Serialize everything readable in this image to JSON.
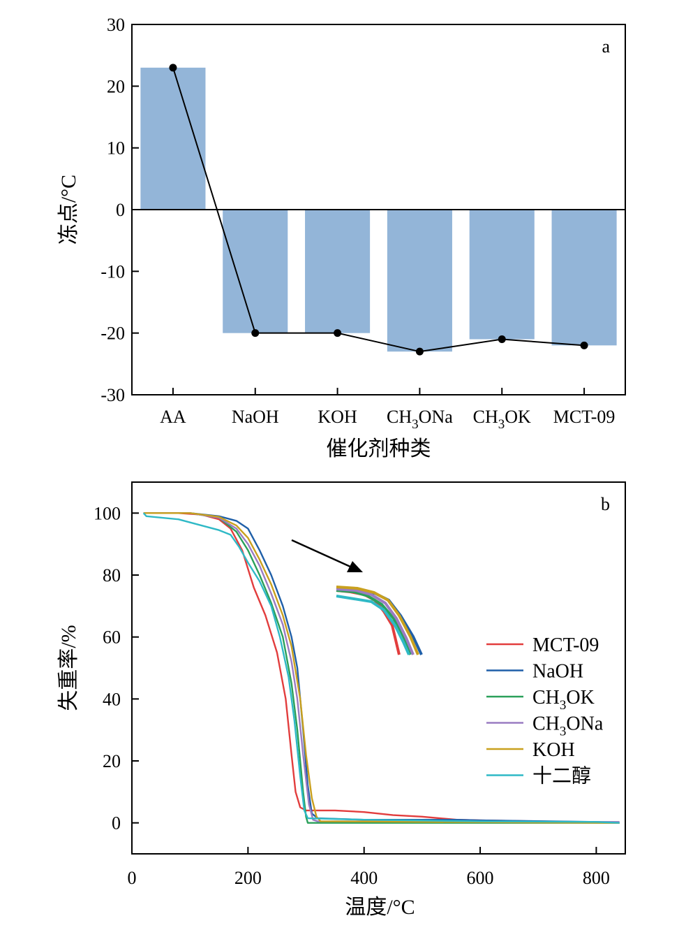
{
  "chart_data": [
    {
      "panel": "a",
      "type": "bar",
      "categories": [
        "AA",
        "NaOH",
        "KOH",
        "CH3ONa",
        "CH3OK",
        "MCT-09"
      ],
      "values": [
        23,
        -20,
        -20,
        -23,
        -21,
        -22
      ],
      "ylabel": "冻点/°C",
      "xlabel": "催化剂种类",
      "ylim": [
        -30,
        30
      ],
      "yticks": [
        "30",
        "20",
        "10",
        "0",
        "-10",
        "-20",
        "-30"
      ],
      "overlay": "line",
      "bar_color": "#93b5d8",
      "grid": false
    },
    {
      "panel": "b",
      "type": "line",
      "xlabel": "温度/°C",
      "ylabel": "失重率/%",
      "xlim": [
        0,
        850
      ],
      "ylim": [
        -10,
        110
      ],
      "xticks": [
        "0",
        "200",
        "400",
        "600",
        "800"
      ],
      "yticks": [
        "100",
        "80",
        "60",
        "40",
        "20",
        "0"
      ],
      "legend_position": "right",
      "grid": false,
      "series": [
        {
          "name": "MCT-09",
          "color": "#e23d3d",
          "points": [
            [
              20,
              100
            ],
            [
              80,
              100
            ],
            [
              120,
              99.5
            ],
            [
              150,
              98
            ],
            [
              170,
              95
            ],
            [
              190,
              88
            ],
            [
              210,
              76
            ],
            [
              230,
              67
            ],
            [
              250,
              55
            ],
            [
              265,
              40
            ],
            [
              275,
              22
            ],
            [
              282,
              10
            ],
            [
              290,
              5
            ],
            [
              300,
              4
            ],
            [
              350,
              4
            ],
            [
              400,
              3.5
            ],
            [
              450,
              2.5
            ],
            [
              500,
              2
            ],
            [
              560,
              1
            ],
            [
              600,
              0.8
            ],
            [
              700,
              0.5
            ],
            [
              800,
              0.2
            ],
            [
              840,
              0
            ]
          ]
        },
        {
          "name": "NaOH",
          "color": "#1f5fa8",
          "points": [
            [
              20,
              100
            ],
            [
              100,
              100
            ],
            [
              150,
              99
            ],
            [
              180,
              97.5
            ],
            [
              200,
              95
            ],
            [
              220,
              88
            ],
            [
              240,
              80
            ],
            [
              260,
              70
            ],
            [
              275,
              60
            ],
            [
              285,
              50
            ],
            [
              295,
              30
            ],
            [
              303,
              12
            ],
            [
              310,
              3
            ],
            [
              320,
              1.5
            ],
            [
              400,
              1
            ],
            [
              500,
              1
            ],
            [
              560,
              1
            ],
            [
              600,
              0.8
            ],
            [
              800,
              0.3
            ],
            [
              840,
              0
            ]
          ]
        },
        {
          "name": "CH₃OK",
          "color": "#2aa05a",
          "points": [
            [
              20,
              100
            ],
            [
              100,
              100
            ],
            [
              150,
              98.5
            ],
            [
              180,
              94
            ],
            [
              200,
              88
            ],
            [
              220,
              80
            ],
            [
              240,
              71
            ],
            [
              260,
              60
            ],
            [
              275,
              45
            ],
            [
              285,
              30
            ],
            [
              295,
              10
            ],
            [
              300,
              2
            ],
            [
              303,
              0
            ],
            [
              400,
              0
            ],
            [
              600,
              0
            ],
            [
              840,
              0
            ]
          ]
        },
        {
          "name": "CH₃ONa",
          "color": "#9a7cc2",
          "points": [
            [
              20,
              100
            ],
            [
              100,
              100
            ],
            [
              150,
              98.5
            ],
            [
              180,
              95
            ],
            [
              200,
              90
            ],
            [
              220,
              83
            ],
            [
              240,
              74
            ],
            [
              260,
              64
            ],
            [
              275,
              52
            ],
            [
              285,
              40
            ],
            [
              295,
              22
            ],
            [
              305,
              6
            ],
            [
              312,
              1
            ],
            [
              320,
              0.5
            ],
            [
              840,
              0.3
            ]
          ]
        },
        {
          "name": "KOH",
          "color": "#c9a01e",
          "points": [
            [
              20,
              100
            ],
            [
              100,
              100
            ],
            [
              150,
              98.8
            ],
            [
              180,
              96
            ],
            [
              200,
              92
            ],
            [
              220,
              85
            ],
            [
              240,
              77
            ],
            [
              260,
              67
            ],
            [
              275,
              57
            ],
            [
              290,
              40
            ],
            [
              300,
              22
            ],
            [
              310,
              8
            ],
            [
              318,
              2
            ],
            [
              325,
              0.5
            ],
            [
              840,
              0
            ]
          ]
        },
        {
          "name": "十二醇",
          "color": "#2fb9c6",
          "points": [
            [
              20,
              100
            ],
            [
              25,
              99
            ],
            [
              80,
              98
            ],
            [
              120,
              96
            ],
            [
              150,
              94.5
            ],
            [
              170,
              93
            ],
            [
              185,
              89
            ],
            [
              200,
              84
            ],
            [
              220,
              78
            ],
            [
              240,
              70
            ],
            [
              255,
              60
            ],
            [
              270,
              47
            ],
            [
              280,
              33
            ],
            [
              290,
              15
            ],
            [
              297,
              4
            ],
            [
              303,
              1.5
            ],
            [
              400,
              1
            ],
            [
              600,
              0.5
            ],
            [
              800,
              0.3
            ],
            [
              840,
              0
            ]
          ]
        }
      ],
      "inset": {
        "note_arrow": true,
        "series_colors": [
          "#e23d3d",
          "#1f5fa8",
          "#2aa05a",
          "#9a7cc2",
          "#c9a01e",
          "#2fb9c6"
        ]
      }
    }
  ],
  "labels": {
    "panel_a": "a",
    "panel_b": "b"
  },
  "legend": [
    "MCT-09",
    "NaOH",
    "CH₃OK",
    "CH₃ONa",
    "KOH",
    "十二醇"
  ]
}
